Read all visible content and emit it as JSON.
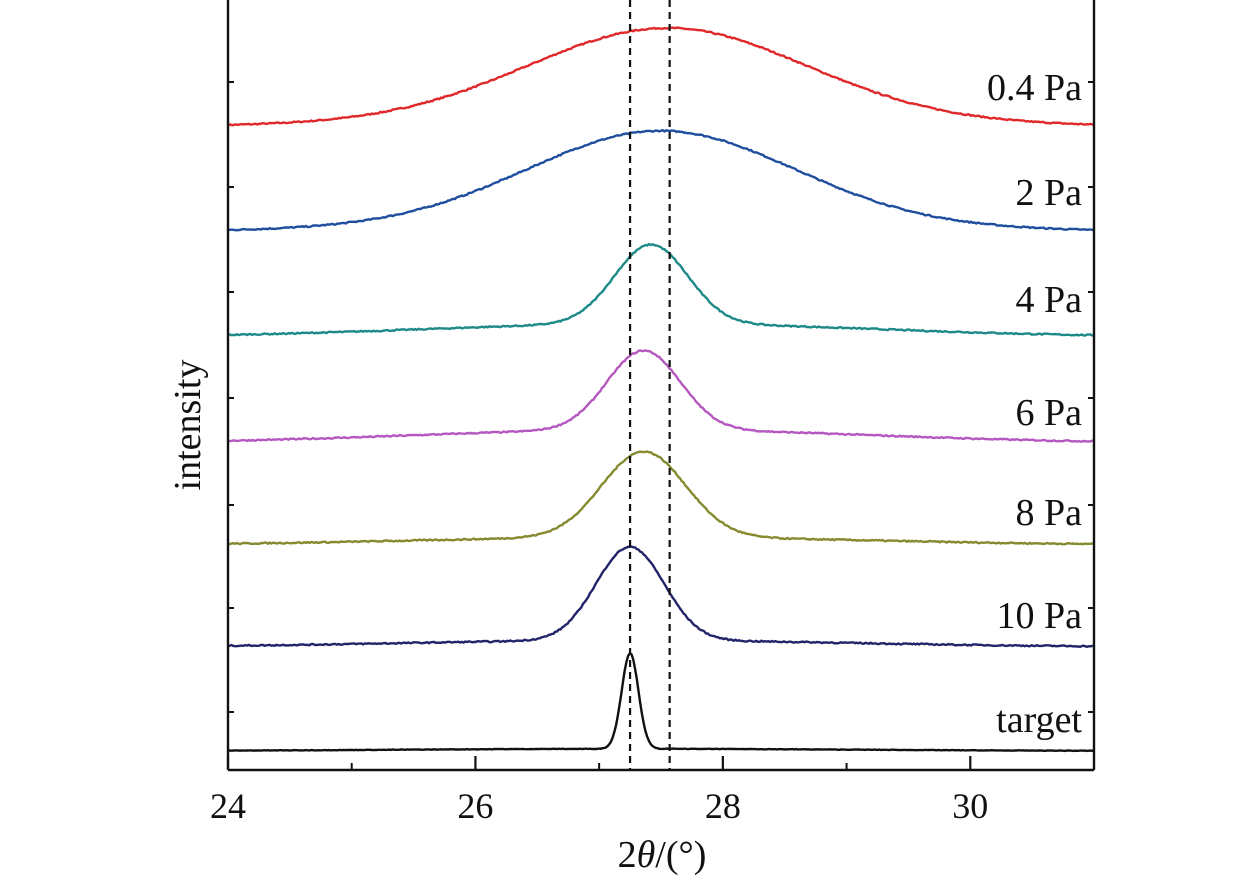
{
  "chart_data": {
    "type": "line",
    "title": "",
    "xlabel_prefix": "2",
    "xlabel_theta": "θ",
    "xlabel_suffix": "/(°)",
    "ylabel": "intensity",
    "xlim": [
      24,
      31
    ],
    "xticks": [
      24,
      26,
      28,
      30
    ],
    "xtick_labels": [
      "24",
      "26",
      "28",
      "30"
    ],
    "reference_lines": [
      27.25,
      27.57
    ],
    "grid": false,
    "legend": "none (series labelled at right end of each curve)",
    "note": "curves are vertically offset; y axis has no numeric scale",
    "series": [
      {
        "name": "0.4 Pa",
        "color": "#e0282b",
        "peak_x": 27.55,
        "fwhm": 2.6,
        "peak_height": 0.8,
        "baseline": 0.1
      },
      {
        "name": "2 Pa",
        "color": "#1f4e9e",
        "peak_x": 27.5,
        "fwhm": 2.5,
        "peak_height": 0.82,
        "baseline": 0.1
      },
      {
        "name": "4 Pa",
        "color": "#1d8a88",
        "peak_x": 27.42,
        "fwhm": 0.7,
        "peak_height": 0.72,
        "baseline": 0.12
      },
      {
        "name": "6 Pa",
        "color": "#b458c0",
        "peak_x": 27.36,
        "fwhm": 0.7,
        "peak_height": 0.72,
        "baseline": 0.12
      },
      {
        "name": "8 Pa",
        "color": "#858a2e",
        "peak_x": 27.36,
        "fwhm": 0.8,
        "peak_height": 0.78,
        "baseline": 0.07
      },
      {
        "name": "10 Pa",
        "color": "#22246a",
        "peak_x": 27.25,
        "fwhm": 0.65,
        "peak_height": 0.85,
        "baseline": 0.06
      },
      {
        "name": "target",
        "color": "#111111",
        "peak_x": 27.25,
        "fwhm": 0.16,
        "peak_height": 0.87,
        "baseline": 0.02
      }
    ]
  }
}
